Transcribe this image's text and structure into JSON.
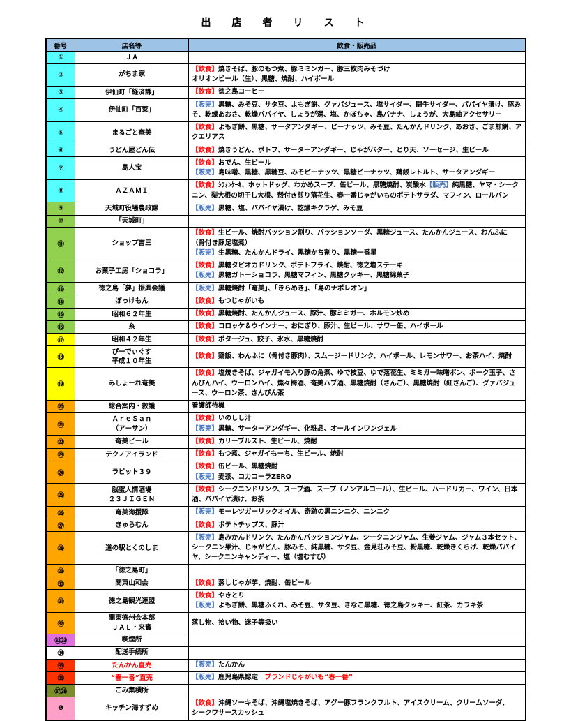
{
  "title": "出　店　者　リ　ス　ト",
  "table": {
    "headers": [
      "番号",
      "店名等",
      "飲食・販売品"
    ],
    "header_bg": "#9DC3E6",
    "row_colors": {
      "cyan": "#55FFFF",
      "green": "#92D050",
      "yellow": "#FFFF00",
      "orange": "#FFA500",
      "violet": "#E070E0",
      "white": "#FFFFFF",
      "red": "#FF3300",
      "olive": "#7D8B2A",
      "pink": "#FFA0C8"
    },
    "seg_colors": {
      "food": "#FF0000",
      "sale": "#4472C4",
      "k": "#000000",
      "r": "#FF0000"
    },
    "rows": [
      {
        "no": "①",
        "bg": "cyan",
        "name": "ＪＡ",
        "name_color": "#000000",
        "items": []
      },
      {
        "no": "②",
        "bg": "cyan",
        "name": "がちま家",
        "name_color": "#000000",
        "items": [
          {
            "c": "food",
            "t": "【飲食】"
          },
          {
            "c": "k",
            "t": "焼きそば、豚のもつ煮、豚ミミンガー、豚三枚肉みそづけ\nオリオンビール（生）、黒糖、焼酎、ハイボール"
          }
        ]
      },
      {
        "no": "③",
        "bg": "cyan",
        "name": "伊仙町「経済課」",
        "name_color": "#000000",
        "items": [
          {
            "c": "food",
            "t": "【飲食】"
          },
          {
            "c": "k",
            "t": "徳之島コーヒー"
          }
        ]
      },
      {
        "no": "④",
        "bg": "cyan",
        "name": "伊仙町「百菜」",
        "name_color": "#000000",
        "items": [
          {
            "c": "sale",
            "t": "【販売】"
          },
          {
            "c": "k",
            "t": "黒糖、みそ豆、サタ豆、よもぎ餅、グァバジュース、塩サイダー、闘牛サイダー、パパイヤ漬け、豚みそ、乾燥あおさ、乾燥パパイヤ、しょうが湯、塩、かぼちゃ、島バナナ、しょうが、大島紬アクセサリー\n"
          }
        ]
      },
      {
        "no": "⑤",
        "bg": "cyan",
        "name": "まるごと奄美",
        "name_color": "#000000",
        "items": [
          {
            "c": "food",
            "t": "【飲食】"
          },
          {
            "c": "k",
            "t": "よもぎ餅、黒糖、サータアンダギー、ピーナッツ、みそ豆、たんかんドリンク、あおさ、ごま煎餅、アクエリアス"
          }
        ]
      },
      {
        "no": "⑥",
        "bg": "cyan",
        "name": "うどん屋どん伝",
        "name_color": "#000000",
        "items": [
          {
            "c": "food",
            "t": "【飲食】"
          },
          {
            "c": "k",
            "t": "焼きうどん、ポトフ、サーターアンダギー、じゃがバター、とり天、ソーセージ、生ビール"
          }
        ]
      },
      {
        "no": "⑦",
        "bg": "cyan",
        "name": "島人宝",
        "name_color": "#000000",
        "items": [
          {
            "c": "food",
            "t": "【飲食】"
          },
          {
            "c": "k",
            "t": "おでん、生ビール\n"
          },
          {
            "c": "sale",
            "t": "【販売】"
          },
          {
            "c": "k",
            "t": "島味噌、黒糖、黒糖豆、みそピーナッツ、黒糖ピーナッツ、鶏飯レトルト、サータアンダギー"
          }
        ]
      },
      {
        "no": "⑧",
        "bg": "cyan",
        "name": "ＡＺＡＭＩ",
        "name_color": "#000000",
        "items": [
          {
            "c": "food",
            "t": "【飲食】"
          },
          {
            "c": "k",
            "t": "ｼﾌｫﾝｹｰｷ、ホットドッグ、わかめスープ、缶ビール、黒糖焼酎、炭酸水"
          },
          {
            "c": "sale",
            "t": "【販売】"
          },
          {
            "c": "k",
            "t": "純黒糖、ヤマ・シークニン、梨大根の切干し大根、殻付き煎り落花生、春一番じゃがいものポテトサラダ、マフィン、ロールパン"
          }
        ]
      },
      {
        "no": "⑨",
        "bg": "green",
        "name": "天城町役場農政課",
        "name_color": "#000000",
        "items": [
          {
            "c": "sale",
            "t": "【販売】"
          },
          {
            "c": "k",
            "t": "黒糖、塩、パパイヤ漬け、乾燥キクラゲ、みそ豆"
          }
        ]
      },
      {
        "no": "⑩",
        "bg": "green",
        "name": "「天城町」",
        "name_color": "#000000",
        "items": []
      },
      {
        "no": "⑪",
        "bg": "green",
        "name": "ショップ吉三",
        "name_color": "#000000",
        "items": [
          {
            "c": "food",
            "t": "【飲食】"
          },
          {
            "c": "k",
            "t": "生ビール、焼酎パッション割り、パッションソーダ、黒糖ジュース、たんかんジュース、わんふに\n（骨付き豚足塩煮）\n"
          },
          {
            "c": "sale",
            "t": "【販売】"
          },
          {
            "c": "k",
            "t": "生黒糖、たんかんドライ、黒糖かち割り、黒糖一番星"
          }
        ]
      },
      {
        "no": "⑫",
        "bg": "green",
        "name": "お菓子工房「ショコラ」",
        "name_color": "#000000",
        "items": [
          {
            "c": "food",
            "t": "【飲食】"
          },
          {
            "c": "k",
            "t": "黒糖タピオカドリンク、ポテトフライ、焼酎、徳之塩ステーキ\n"
          },
          {
            "c": "sale",
            "t": "【販売】"
          },
          {
            "c": "k",
            "t": "黒糖ガトーショコラ、黒糖マフィン、黒糖クッキー、黒糖綿菓子"
          }
        ]
      },
      {
        "no": "⑬",
        "bg": "green",
        "name": "徳之島「夢」振興会議",
        "name_color": "#000000",
        "items": [
          {
            "c": "sale",
            "t": "【販売】"
          },
          {
            "c": "k",
            "t": "黒糖焼酎「奄美」、「きらめき」、「島のナポレオン」"
          }
        ]
      },
      {
        "no": "⑭",
        "bg": "green",
        "name": "ぼっけもん",
        "name_color": "#000000",
        "items": [
          {
            "c": "food",
            "t": "【飲食】"
          },
          {
            "c": "k",
            "t": "もつじゃがいも"
          }
        ]
      },
      {
        "no": "⑮",
        "bg": "green",
        "name": "昭和６２年生",
        "name_color": "#000000",
        "items": [
          {
            "c": "food",
            "t": "【飲食】"
          },
          {
            "c": "k",
            "t": "黒糖焼酎、たんかんジュース、豚汁、豚ミミガー、ホルモン炒め"
          }
        ]
      },
      {
        "no": "⑯",
        "bg": "green",
        "name": "糸",
        "name_color": "#000000",
        "items": [
          {
            "c": "food",
            "t": "【飲食】"
          },
          {
            "c": "k",
            "t": "コロッケ＆ウインナー、おにぎり、豚汁、生ビール、サワー缶、ハイボール"
          }
        ]
      },
      {
        "no": "⑰",
        "bg": "yellow",
        "name": "昭和４２年生",
        "name_color": "#000000",
        "items": [
          {
            "c": "food",
            "t": "【飲食】"
          },
          {
            "c": "k",
            "t": "ポタージュ、餃子、氷水、黒糖焼酎"
          }
        ]
      },
      {
        "no": "⑱",
        "bg": "yellow",
        "name": "ぴーでぃぐす\n平成１０年生",
        "name_color": "#000000",
        "items": [
          {
            "c": "food",
            "t": "【飲食】"
          },
          {
            "c": "k",
            "t": "鶏飯、わんふに（骨付き豚肉）、スムージードリンク、ハイボール、レモンサワー、お茶ハイ、焼酎"
          }
        ]
      },
      {
        "no": "⑲",
        "bg": "yellow",
        "name": "みしょーれ奄美",
        "name_color": "#000000",
        "items": [
          {
            "c": "food",
            "t": "【飲食】"
          },
          {
            "c": "k",
            "t": "塩焼きそば、ジャガイモ入り豚の角煮、ゆで枝豆、ゆで落花生、ミミガー味噌ポン、ポーク玉子、さんぴんハイ、ウーロンハイ、燦々梅酒、奄美ハブ酒、黒糖焼酎（さんご）、黒糖焼酎（紅さんご）、グァバジュース、ウーロン茶、さんぴん茶"
          }
        ]
      },
      {
        "no": "⑳",
        "bg": "orange",
        "name": "総合案内・救護",
        "name_color": "#000000",
        "items": [
          {
            "c": "k",
            "t": "看護師待機"
          }
        ]
      },
      {
        "no": "㉑",
        "bg": "orange",
        "name": "ＡｒｅＳａｎ\n（アーサン）",
        "name_color": "#000000",
        "items": [
          {
            "c": "food",
            "t": "【飲食】"
          },
          {
            "c": "k",
            "t": "いのしし汁\n"
          },
          {
            "c": "sale",
            "t": "【販売】"
          },
          {
            "c": "k",
            "t": "黒糖、サーターアンダギー、化粧品、オールインワンジェル"
          }
        ]
      },
      {
        "no": "㉒",
        "bg": "orange",
        "name": "奄美ビール",
        "name_color": "#000000",
        "items": [
          {
            "c": "food",
            "t": "【飲食】"
          },
          {
            "c": "k",
            "t": "カリーブルスト、生ビール、焼酎"
          }
        ]
      },
      {
        "no": "㉓",
        "bg": "orange",
        "name": "テクノアイランド",
        "name_color": "#000000",
        "items": [
          {
            "c": "food",
            "t": "【飲食】"
          },
          {
            "c": "k",
            "t": "もつ煮、ジャガイもーち、生ビール、焼酎"
          }
        ]
      },
      {
        "no": "㉔",
        "bg": "orange",
        "name": "ラビット３９",
        "name_color": "#000000",
        "items": [
          {
            "c": "food",
            "t": "【飲食】"
          },
          {
            "c": "k",
            "t": "缶ビール、黒糖焼酎\n"
          },
          {
            "c": "sale",
            "t": "【販売】"
          },
          {
            "c": "k",
            "t": "麦茶、コカコーラZERO"
          }
        ]
      },
      {
        "no": "㉕",
        "bg": "orange",
        "name": "脳蜜人情酒場\n２３ＪＩＧＥＮ",
        "name_color": "#000000",
        "items": [
          {
            "c": "food",
            "t": "【飲食】"
          },
          {
            "c": "k",
            "t": "シークニンドリンク、スープ酒、スープ（ノンアルコール）、生ビール、ハードリカー、ワイン、日本酒、パパイヤ漬け、お茶"
          }
        ]
      },
      {
        "no": "㉖",
        "bg": "orange",
        "name": "奄美海援隊",
        "name_color": "#000000",
        "items": [
          {
            "c": "sale",
            "t": "【販売】"
          },
          {
            "c": "k",
            "t": "モーレツガーリックオイル、奇跡の黒ニンニク、ニンニク"
          }
        ]
      },
      {
        "no": "㉗",
        "bg": "orange",
        "name": "きゅらむん",
        "name_color": "#000000",
        "items": [
          {
            "c": "food",
            "t": "【飲食】"
          },
          {
            "c": "k",
            "t": "ポテトチップス、豚汁"
          }
        ]
      },
      {
        "no": "㉘",
        "bg": "orange",
        "name": "道の駅とくのしま",
        "name_color": "#000000",
        "items": [
          {
            "c": "sale",
            "t": "【販売】"
          },
          {
            "c": "k",
            "t": "島みかんドリンク、たんかんパッションジャム、シークニンジャム、生姜ジャム、ジャム３本セット、シークニン果汁、じゃがどん、豚みそ、純黒糖、サタ豆、金見荘みそ豆、粉黒糖、乾燥きくらげ、乾燥パパイヤ、シークニンキャンディー、塩（塩むすび）"
          }
        ]
      },
      {
        "no": "㉙",
        "bg": "orange",
        "name": "「徳之島町」",
        "name_color": "#000000",
        "items": []
      },
      {
        "no": "㉚",
        "bg": "orange",
        "name": "関東山和会",
        "name_color": "#000000",
        "items": [
          {
            "c": "food",
            "t": "【飲食】"
          },
          {
            "c": "k",
            "t": "蒸しじゃが芋、焼酎、缶ビール"
          }
        ]
      },
      {
        "no": "㉛",
        "bg": "orange",
        "name": "徳之島観光連盟",
        "name_color": "#000000",
        "items": [
          {
            "c": "food",
            "t": "【飲食】"
          },
          {
            "c": "k",
            "t": "やきとり\n"
          },
          {
            "c": "sale",
            "t": "【販売】"
          },
          {
            "c": "k",
            "t": "よもぎ餅、黒糖ふくれ、みそ豆、サタ豆、きなこ黒糖、徳之島クッキー、紅茶、カラキ茶"
          }
        ]
      },
      {
        "no": "㉜",
        "bg": "orange",
        "name": "関東徳州会本部\nＪＡＬ・来賓",
        "name_color": "#000000",
        "items": [
          {
            "c": "k",
            "t": "落し物、拾い物、迷子等扱い"
          }
        ]
      },
      {
        "no": "㉝㉝",
        "bg": "violet",
        "name": "喫煙所",
        "name_color": "#000000",
        "items": []
      },
      {
        "no": "㉞",
        "bg": "white",
        "name": "配送手続所",
        "name_color": "#000000",
        "items": []
      },
      {
        "no": "㉟",
        "bg": "red",
        "name": "たんかん直売",
        "name_color": "#FF0000",
        "items": [
          {
            "c": "sale",
            "t": "【販売】"
          },
          {
            "c": "k",
            "t": "たんかん"
          }
        ]
      },
      {
        "no": "㊱",
        "bg": "red",
        "name": "“春一番”直売",
        "name_color": "#FF0000",
        "items": [
          {
            "c": "sale",
            "t": "【販売】"
          },
          {
            "c": "k",
            "t": "鹿児島県認定　"
          },
          {
            "c": "r",
            "t": "ブランドじゃがいも“春一番”"
          }
        ]
      },
      {
        "no": "㊲㊳",
        "bg": "olive",
        "name": "ごみ集積所",
        "name_color": "#000000",
        "items": []
      },
      {
        "no": "❶",
        "bg": "pink",
        "name": "キッチン海すずめ",
        "name_color": "#000000",
        "items": [
          {
            "c": "food",
            "t": "【飲食】"
          },
          {
            "c": "k",
            "t": "沖縄ソーキそば、沖縄塩焼きそば、アグー豚フランクフルト、アイスクリーム、クリームソーダ、\nシークワサースカッシュ"
          }
        ]
      }
    ]
  }
}
